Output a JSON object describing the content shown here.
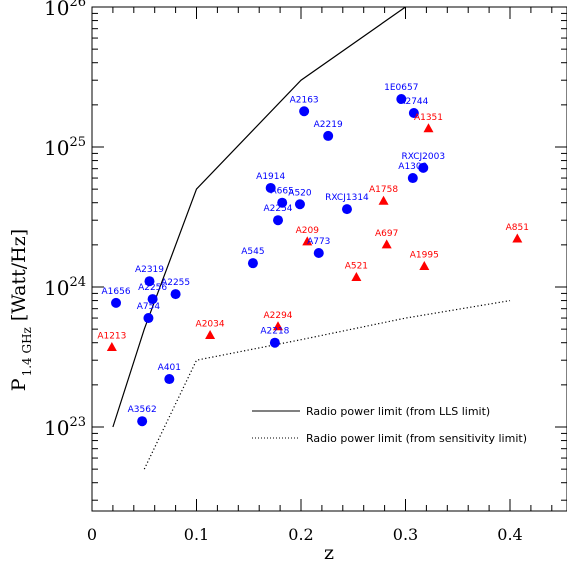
{
  "chart_data": {
    "type": "scatter",
    "title": "",
    "xlabel": "z",
    "ylabel": "P",
    "ylabel_sub": "1.4 GHz",
    "ylabel_units": "[Watt/Hz]",
    "xlim": [
      0,
      0.45
    ],
    "ylim": [
      2e+22,
      1e+26
    ],
    "yscale": "log",
    "x_ticks": [
      {
        "value": 0,
        "label": "0"
      },
      {
        "value": 0.1,
        "label": "0.1"
      },
      {
        "value": 0.2,
        "label": "0.2"
      },
      {
        "value": 0.3,
        "label": "0.3"
      },
      {
        "value": 0.4,
        "label": "0.4"
      }
    ],
    "y_ticks": [
      {
        "value": 1e+23,
        "mant": "10",
        "exp": "23"
      },
      {
        "value": 1e+24,
        "mant": "10",
        "exp": "24"
      },
      {
        "value": 1e+25,
        "mant": "10",
        "exp": "25"
      },
      {
        "value": 1e+26,
        "mant": "10",
        "exp": "26"
      }
    ],
    "grid": false,
    "colors": {
      "circle": "#0000ff",
      "triangle": "#ff0000",
      "line": "#000000"
    },
    "circles": [
      {
        "name": "A1656",
        "x": 0.023,
        "y": 7.7e+23
      },
      {
        "name": "A2319",
        "x": 0.055,
        "y": 1.1e+24
      },
      {
        "name": "A2256",
        "x": 0.058,
        "y": 8.2e+23
      },
      {
        "name": "A754",
        "x": 0.054,
        "y": 6e+23
      },
      {
        "name": "A2255",
        "x": 0.08,
        "y": 8.9e+23
      },
      {
        "name": "A401",
        "x": 0.074,
        "y": 2.2e+23
      },
      {
        "name": "A3562",
        "x": 0.048,
        "y": 1.1e+23
      },
      {
        "name": "A545",
        "x": 0.154,
        "y": 1.48e+24
      },
      {
        "name": "A2218",
        "x": 0.175,
        "y": 4e+23
      },
      {
        "name": "A2254",
        "x": 0.178,
        "y": 3e+24
      },
      {
        "name": "A1914",
        "x": 0.171,
        "y": 5.1e+24
      },
      {
        "name": "A665",
        "x": 0.182,
        "y": 4e+24
      },
      {
        "name": "A520",
        "x": 0.199,
        "y": 3.9e+24
      },
      {
        "name": "A773",
        "x": 0.217,
        "y": 1.75e+24
      },
      {
        "name": "A2163",
        "x": 0.203,
        "y": 1.8e+25
      },
      {
        "name": "A2219",
        "x": 0.226,
        "y": 1.2e+25
      },
      {
        "name": "RXCJ1314",
        "x": 0.244,
        "y": 3.6e+24
      },
      {
        "name": "1E0657",
        "x": 0.296,
        "y": 2.2e+25
      },
      {
        "name": "A2744",
        "x": 0.308,
        "y": 1.75e+25
      },
      {
        "name": "RXCJ2003",
        "x": 0.317,
        "y": 7.1e+24
      },
      {
        "name": "A1300",
        "x": 0.307,
        "y": 6e+24
      }
    ],
    "triangles": [
      {
        "name": "A1213",
        "x": 0.019,
        "y": 3.7e+23
      },
      {
        "name": "A2034",
        "x": 0.113,
        "y": 4.5e+23
      },
      {
        "name": "A2294",
        "x": 0.178,
        "y": 5.2e+23
      },
      {
        "name": "A209",
        "x": 0.206,
        "y": 2.1e+24
      },
      {
        "name": "A521",
        "x": 0.253,
        "y": 1.17e+24
      },
      {
        "name": "A697",
        "x": 0.282,
        "y": 2e+24
      },
      {
        "name": "A1758",
        "x": 0.279,
        "y": 4.1e+24
      },
      {
        "name": "A1995",
        "x": 0.318,
        "y": 1.4e+24
      },
      {
        "name": "A1351",
        "x": 0.322,
        "y": 1.35e+25
      },
      {
        "name": "A851",
        "x": 0.407,
        "y": 2.2e+24
      }
    ],
    "lines": [
      {
        "name": "Radio power limit (from LLS limit)",
        "style": "solid",
        "x": [
          0.02,
          0.05,
          0.1,
          0.2,
          0.3
        ],
        "y": [
          1e+23,
          5e+23,
          5e+24,
          3e+25,
          1e+26
        ]
      },
      {
        "name": "Radio power limit (from sensitivity limit)",
        "style": "dotted",
        "x": [
          0.05,
          0.1,
          0.2,
          0.3,
          0.4
        ],
        "y": [
          5e+22,
          3e+23,
          4.2e+23,
          6e+23,
          8e+23
        ]
      }
    ],
    "legend_position": "bottom-right"
  }
}
